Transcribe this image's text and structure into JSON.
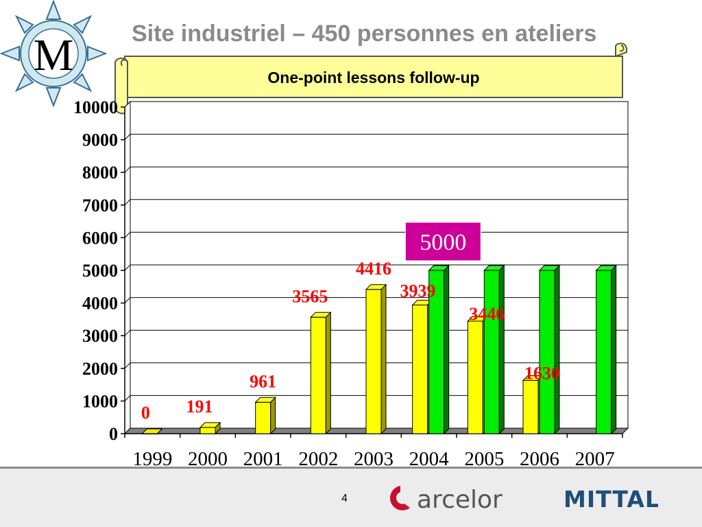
{
  "slide": {
    "title": "Site industriel – 450 personnes en ateliers",
    "banner_title": "One-point lessons follow-up",
    "page_number": "4",
    "logo_letter": "M",
    "arcelor_label": "arcelor",
    "mittal_label": "MITTAL"
  },
  "colors": {
    "title": "#8a8a8a",
    "banner_fill": "#ffff99",
    "bar_actual": "#ffff00",
    "bar_target": "#00ee00",
    "value_label": "#ff0000",
    "target_box": "#cc0099",
    "arcelor_red": "#c8102e",
    "mittal_blue": "#1f4e79"
  },
  "chart_data": {
    "type": "bar",
    "categories": [
      "1999",
      "2000",
      "2001",
      "2002",
      "2003",
      "2004",
      "2005",
      "2006",
      "2007"
    ],
    "series": [
      {
        "values": [
          0,
          191,
          961,
          3565,
          4416,
          3939,
          3446,
          1630,
          null
        ]
      },
      {
        "values": [
          null,
          null,
          null,
          null,
          null,
          5000,
          5000,
          5000,
          5000
        ]
      }
    ],
    "data_labels": [
      "0",
      "191",
      "961",
      "3565",
      "4416",
      "3939",
      "3446",
      "1630",
      null
    ],
    "target_label": "5000",
    "ylim": [
      0,
      10000
    ],
    "yticks": [
      0,
      1000,
      2000,
      3000,
      4000,
      5000,
      6000,
      7000,
      8000,
      9000,
      10000
    ],
    "grid": true,
    "legend": "none",
    "xlabel": "",
    "ylabel": "",
    "title": ""
  }
}
